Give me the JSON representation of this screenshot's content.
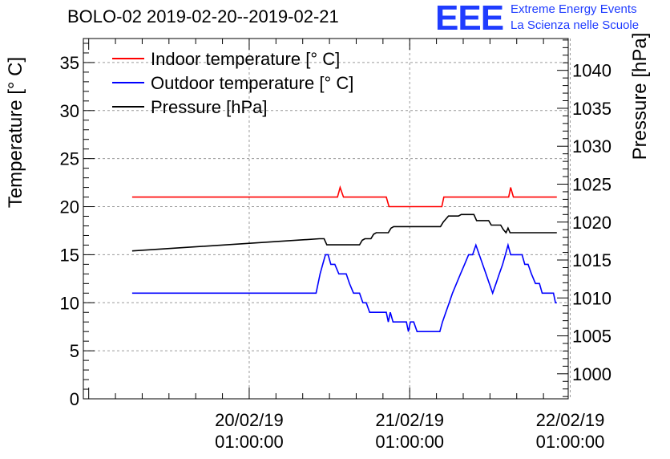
{
  "header": {
    "title": "BOLO-02 2019-02-20--2019-02-21",
    "logo_text": "EEE",
    "logo_line1": "Extreme Energy Events",
    "logo_line2": "La Scienza nelle Scuole"
  },
  "chart_data": {
    "type": "line",
    "title": "BOLO-02 2019-02-20--2019-02-21",
    "ylabel": "Temperature [° C]",
    "y2label": "Pressure [hPa]",
    "xlabel": "",
    "ylim": [
      0,
      37.5
    ],
    "y2lim": [
      996.7,
      1044.2
    ],
    "xlim": [
      -24.8,
      47.7
    ],
    "x_unit": "hours since 20/02/19 01:00:00",
    "grid": true,
    "legend_position": "top-left",
    "y_ticks": [
      "0",
      "5",
      "10",
      "15",
      "20",
      "25",
      "30",
      "35"
    ],
    "y2_ticks": [
      "1000",
      "1005",
      "1010",
      "1015",
      "1020",
      "1025",
      "1030",
      "1035",
      "1040"
    ],
    "x_ticks": [
      {
        "value": 0,
        "line1": "20/02/19",
        "line2": "01:00:00"
      },
      {
        "value": 24,
        "line1": "21/02/19",
        "line2": "01:00:00"
      },
      {
        "value": 48,
        "line1": "22/02/19",
        "line2": "01:00:00"
      }
    ],
    "series": [
      {
        "name": "Indoor temperature [° C]",
        "color": "#ff0000",
        "axis": "left",
        "points": [
          [
            -17.5,
            21
          ],
          [
            13.2,
            21
          ],
          [
            13.6,
            22
          ],
          [
            14.1,
            21
          ],
          [
            20.5,
            21
          ],
          [
            20.9,
            20
          ],
          [
            28.8,
            20
          ],
          [
            29.1,
            21
          ],
          [
            38.8,
            21
          ],
          [
            39.1,
            22
          ],
          [
            39.5,
            21
          ],
          [
            46.0,
            21
          ]
        ]
      },
      {
        "name": "Outdoor temperature [° C]",
        "color": "#0000ff",
        "axis": "left",
        "points": [
          [
            -17.5,
            11
          ],
          [
            10.0,
            11
          ],
          [
            10.3,
            12
          ],
          [
            10.6,
            13
          ],
          [
            11.0,
            14
          ],
          [
            11.4,
            15
          ],
          [
            11.8,
            15
          ],
          [
            12.2,
            14
          ],
          [
            12.8,
            14
          ],
          [
            13.4,
            13
          ],
          [
            14.5,
            13
          ],
          [
            15.0,
            12
          ],
          [
            15.6,
            11
          ],
          [
            16.5,
            11
          ],
          [
            17.0,
            10
          ],
          [
            17.5,
            10
          ],
          [
            18.0,
            9
          ],
          [
            20.5,
            9
          ],
          [
            20.8,
            8
          ],
          [
            21.1,
            9
          ],
          [
            21.5,
            8
          ],
          [
            23.5,
            8
          ],
          [
            23.8,
            7
          ],
          [
            24.1,
            8
          ],
          [
            24.6,
            8
          ],
          [
            25.1,
            7
          ],
          [
            28.5,
            7
          ],
          [
            28.9,
            8
          ],
          [
            29.4,
            9
          ],
          [
            29.9,
            10
          ],
          [
            30.4,
            11
          ],
          [
            31.0,
            12
          ],
          [
            31.6,
            13
          ],
          [
            32.2,
            14
          ],
          [
            32.8,
            15
          ],
          [
            33.4,
            15
          ],
          [
            33.9,
            16
          ],
          [
            34.4,
            15
          ],
          [
            34.9,
            14
          ],
          [
            35.4,
            13
          ],
          [
            35.9,
            12
          ],
          [
            36.4,
            11
          ],
          [
            36.9,
            12
          ],
          [
            37.4,
            13
          ],
          [
            37.9,
            14
          ],
          [
            38.3,
            15
          ],
          [
            38.7,
            16
          ],
          [
            39.1,
            15
          ],
          [
            40.8,
            15
          ],
          [
            41.2,
            14
          ],
          [
            41.7,
            14
          ],
          [
            42.2,
            13
          ],
          [
            42.8,
            12
          ],
          [
            43.4,
            12
          ],
          [
            43.8,
            11
          ],
          [
            45.5,
            11
          ],
          [
            45.8,
            10
          ],
          [
            46.0,
            10
          ]
        ]
      },
      {
        "name": "Pressure [hPa]",
        "color": "#000000",
        "axis": "right",
        "points": [
          [
            -17.5,
            1016.2
          ],
          [
            10.5,
            1017.8
          ],
          [
            11.2,
            1017.8
          ],
          [
            11.6,
            1017.0
          ],
          [
            16.5,
            1017.0
          ],
          [
            16.9,
            1017.6
          ],
          [
            17.3,
            1017.8
          ],
          [
            18.2,
            1017.8
          ],
          [
            18.6,
            1018.4
          ],
          [
            19.0,
            1018.6
          ],
          [
            20.8,
            1018.6
          ],
          [
            21.2,
            1019.2
          ],
          [
            21.6,
            1019.4
          ],
          [
            28.6,
            1019.4
          ],
          [
            29.0,
            1020.0
          ],
          [
            29.4,
            1020.4
          ],
          [
            29.8,
            1020.8
          ],
          [
            31.3,
            1020.8
          ],
          [
            31.7,
            1021.0
          ],
          [
            33.6,
            1021.0
          ],
          [
            34.0,
            1020.2
          ],
          [
            35.8,
            1020.2
          ],
          [
            36.2,
            1019.6
          ],
          [
            37.6,
            1019.6
          ],
          [
            38.0,
            1019.0
          ],
          [
            38.4,
            1018.6
          ],
          [
            38.7,
            1019.2
          ],
          [
            39.0,
            1018.6
          ],
          [
            46.0,
            1018.6
          ]
        ]
      }
    ]
  }
}
